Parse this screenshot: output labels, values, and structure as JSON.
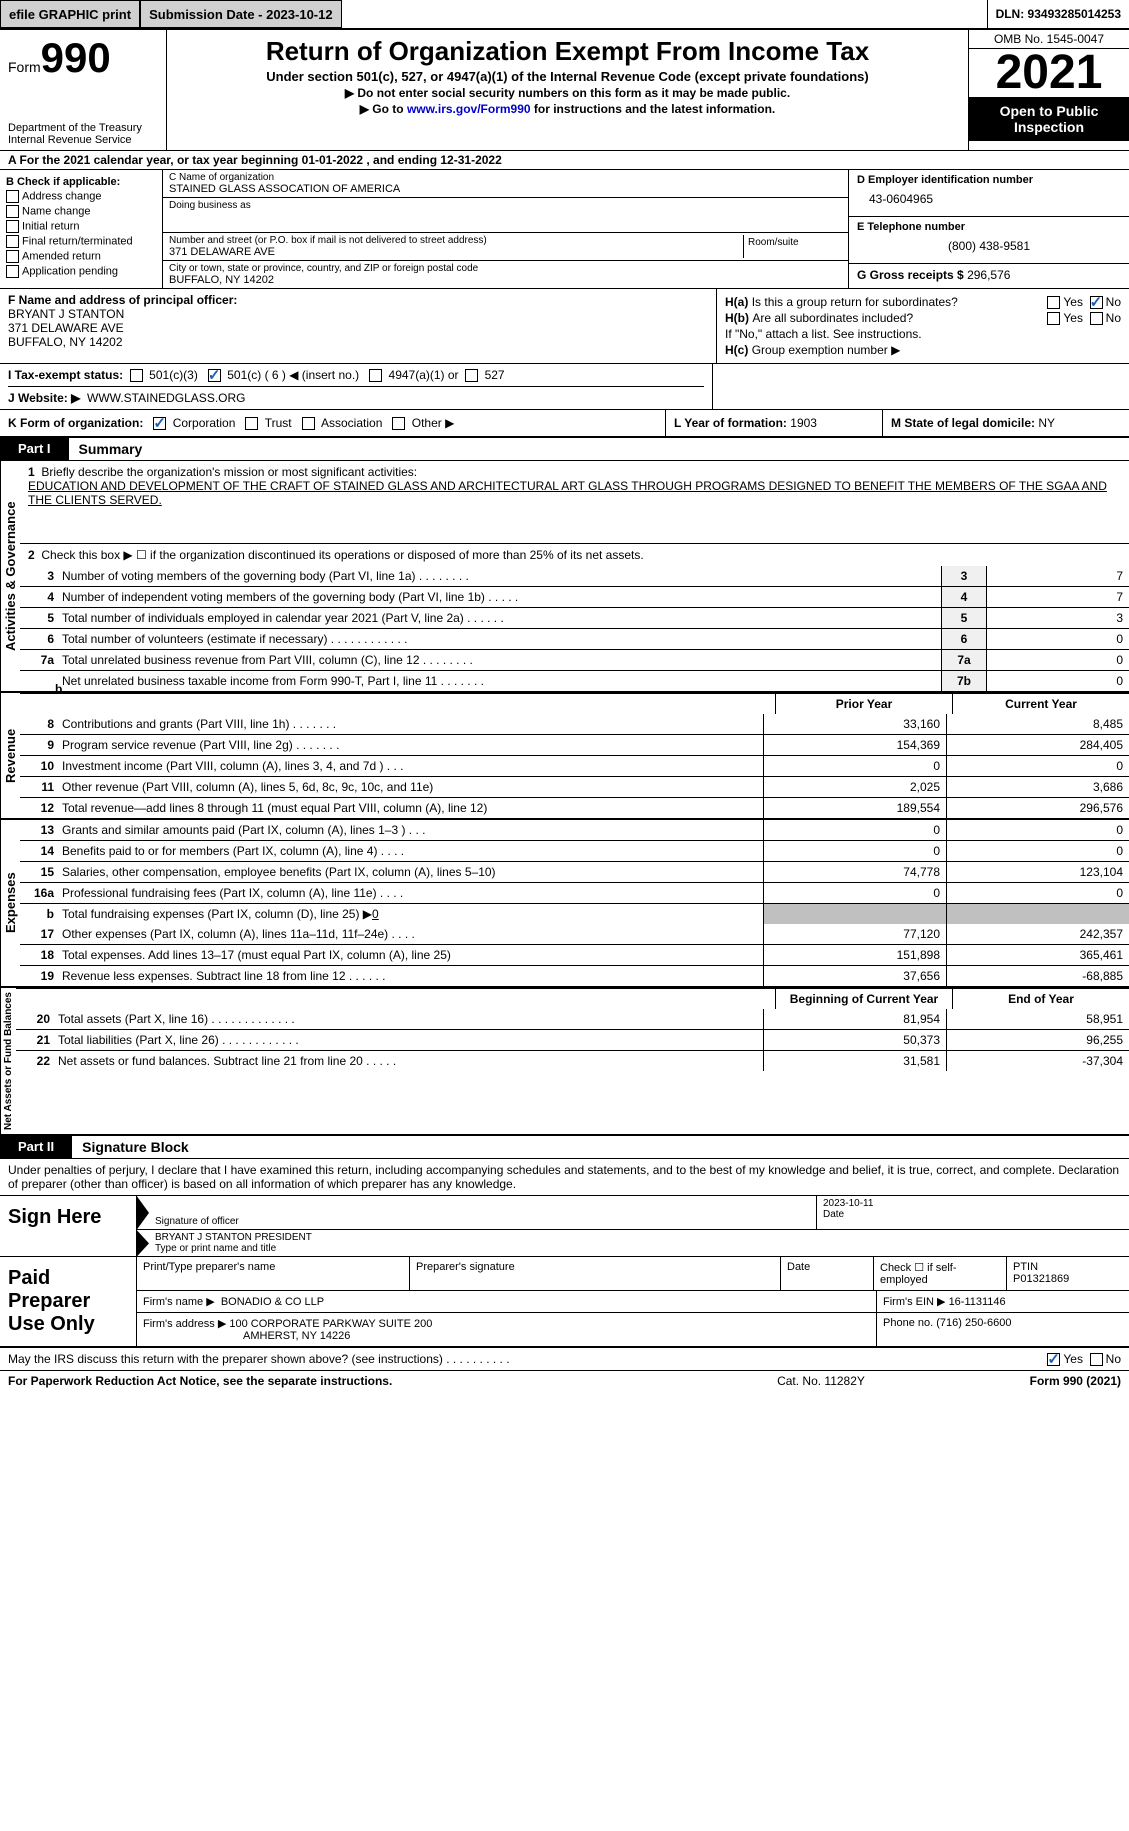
{
  "colors": {
    "black": "#000000",
    "white": "#ffffff",
    "grey_btn": "#d0d0d0",
    "grey_fill": "#c0c0c0",
    "link": "#0000cc",
    "check": "#1a5fb4"
  },
  "topbar": {
    "efile": "efile GRAPHIC print",
    "submission": "Submission Date - 2023-10-12",
    "dln": "DLN: 93493285014253"
  },
  "header": {
    "form_word": "Form",
    "form_num": "990",
    "dept": "Department of the Treasury",
    "irs": "Internal Revenue Service",
    "title": "Return of Organization Exempt From Income Tax",
    "sub": "Under section 501(c), 527, or 4947(a)(1) of the Internal Revenue Code (except private foundations)",
    "arrow1": "▶ Do not enter social security numbers on this form as it may be made public.",
    "arrow2_pre": "▶ Go to ",
    "arrow2_link": "www.irs.gov/Form990",
    "arrow2_post": " for instructions and the latest information.",
    "omb": "OMB No. 1545-0047",
    "year": "2021",
    "open": "Open to Public Inspection"
  },
  "row_a": "A For the 2021 calendar year, or tax year beginning 01-01-2022   , and ending 12-31-2022",
  "section_b": {
    "hdr": "B Check if applicable:",
    "items": [
      "Address change",
      "Name change",
      "Initial return",
      "Final return/terminated",
      "Amended return",
      "Application pending"
    ]
  },
  "section_c": {
    "name_lbl": "C Name of organization",
    "name": "STAINED GLASS ASSOCATION OF AMERICA",
    "dba_lbl": "Doing business as",
    "dba": "",
    "street_lbl": "Number and street (or P.O. box if mail is not delivered to street address)",
    "street": "371 DELAWARE AVE",
    "room_lbl": "Room/suite",
    "city_lbl": "City or town, state or province, country, and ZIP or foreign postal code",
    "city": "BUFFALO, NY  14202"
  },
  "section_d": {
    "ein_lbl": "D Employer identification number",
    "ein": "43-0604965",
    "tel_lbl": "E Telephone number",
    "tel": "(800) 438-9581",
    "gross_lbl": "G Gross receipts $",
    "gross": "296,576"
  },
  "section_f": {
    "lbl": "F Name and address of principal officer:",
    "name": "BRYANT J STANTON",
    "street": "371 DELAWARE AVE",
    "city": "BUFFALO, NY  14202"
  },
  "section_h": {
    "a_lbl": "H(a)",
    "a_q": "Is this a group return for subordinates?",
    "b_lbl": "H(b)",
    "b_q": "Are all subordinates included?",
    "note": "If \"No,\" attach a list. See instructions.",
    "c_lbl": "H(c)",
    "c_q": "Group exemption number ▶",
    "yes": "Yes",
    "no": "No"
  },
  "row_i": {
    "lbl": "I   Tax-exempt status:",
    "o1": "501(c)(3)",
    "o2": "501(c) ( 6 ) ◀ (insert no.)",
    "o3": "4947(a)(1) or",
    "o4": "527"
  },
  "row_j": {
    "lbl": "J   Website: ▶",
    "val": "WWW.STAINEDGLASS.ORG"
  },
  "row_k": {
    "lbl": "K Form of organization:",
    "o1": "Corporation",
    "o2": "Trust",
    "o3": "Association",
    "o4": "Other ▶",
    "l_lbl": "L Year of formation:",
    "l_val": "1903",
    "m_lbl": "M State of legal domicile:",
    "m_val": "NY"
  },
  "part1": {
    "tag": "Part I",
    "title": "Summary"
  },
  "activities": {
    "label": "Activities & Governance",
    "line1_num": "1",
    "line1": "Briefly describe the organization's mission or most significant activities:",
    "mission": "EDUCATION AND DEVELOPMENT OF THE CRAFT OF STAINED GLASS AND ARCHITECTURAL ART GLASS THROUGH PROGRAMS DESIGNED TO BENEFIT THE MEMBERS OF THE SGAA AND THE CLIENTS SERVED.",
    "line2_num": "2",
    "line2": "Check this box ▶ ☐ if the organization discontinued its operations or disposed of more than 25% of its net assets.",
    "rows": [
      {
        "n": "3",
        "d": "Number of voting members of the governing body (Part VI, line 1a)  .    .    .    .    .    .    .    .",
        "b": "3",
        "v": "7"
      },
      {
        "n": "4",
        "d": "Number of independent voting members of the governing body (Part VI, line 1b)  .    .    .    .    .",
        "b": "4",
        "v": "7"
      },
      {
        "n": "5",
        "d": "Total number of individuals employed in calendar year 2021 (Part V, line 2a)  .    .    .    .    .    .",
        "b": "5",
        "v": "3"
      },
      {
        "n": "6",
        "d": "Total number of volunteers (estimate if necessary)  .    .    .    .    .    .    .    .    .    .    .    .",
        "b": "6",
        "v": "0"
      },
      {
        "n": "7a",
        "d": "Total unrelated business revenue from Part VIII, column (C), line 12  .    .    .    .    .    .    .    .",
        "b": "7a",
        "v": "0"
      },
      {
        "n": "",
        "d": "Net unrelated business taxable income from Form 990-T, Part I, line 11  .    .    .    .    .    .    .",
        "b": "7b",
        "v": "0"
      }
    ]
  },
  "revenue": {
    "label": "Revenue",
    "hdr_prior": "Prior Year",
    "hdr_curr": "Current Year",
    "rows": [
      {
        "n": "8",
        "d": "Contributions and grants (Part VIII, line 1h)  .    .    .    .    .    .    .",
        "p": "33,160",
        "c": "8,485"
      },
      {
        "n": "9",
        "d": "Program service revenue (Part VIII, line 2g)  .    .    .    .    .    .    .",
        "p": "154,369",
        "c": "284,405"
      },
      {
        "n": "10",
        "d": "Investment income (Part VIII, column (A), lines 3, 4, and 7d )  .    .    .",
        "p": "0",
        "c": "0"
      },
      {
        "n": "11",
        "d": "Other revenue (Part VIII, column (A), lines 5, 6d, 8c, 9c, 10c, and 11e)",
        "p": "2,025",
        "c": "3,686"
      },
      {
        "n": "12",
        "d": "Total revenue—add lines 8 through 11 (must equal Part VIII, column (A), line 12)",
        "p": "189,554",
        "c": "296,576"
      }
    ]
  },
  "expenses": {
    "label": "Expenses",
    "rows": [
      {
        "n": "13",
        "d": "Grants and similar amounts paid (Part IX, column (A), lines 1–3 )  .    .    .",
        "p": "0",
        "c": "0"
      },
      {
        "n": "14",
        "d": "Benefits paid to or for members (Part IX, column (A), line 4)  .    .    .    .",
        "p": "0",
        "c": "0"
      },
      {
        "n": "15",
        "d": "Salaries, other compensation, employee benefits (Part IX, column (A), lines 5–10)",
        "p": "74,778",
        "c": "123,104"
      },
      {
        "n": "16a",
        "d": "Professional fundraising fees (Part IX, column (A), line 11e)  .    .    .    .",
        "p": "0",
        "c": "0"
      }
    ],
    "line_b_n": "b",
    "line_b": "Total fundraising expenses (Part IX, column (D), line 25) ▶",
    "line_b_val": "0",
    "rows2": [
      {
        "n": "17",
        "d": "Other expenses (Part IX, column (A), lines 11a–11d, 11f–24e)  .    .    .    .",
        "p": "77,120",
        "c": "242,357"
      },
      {
        "n": "18",
        "d": "Total expenses. Add lines 13–17 (must equal Part IX, column (A), line 25)",
        "p": "151,898",
        "c": "365,461"
      },
      {
        "n": "19",
        "d": "Revenue less expenses. Subtract line 18 from line 12  .    .    .    .    .    .",
        "p": "37,656",
        "c": "-68,885"
      }
    ]
  },
  "netassets": {
    "label": "Net Assets or Fund Balances",
    "hdr_beg": "Beginning of Current Year",
    "hdr_end": "End of Year",
    "rows": [
      {
        "n": "20",
        "d": "Total assets (Part X, line 16)  .    .    .    .    .    .    .    .    .    .    .    .    .",
        "p": "81,954",
        "c": "58,951"
      },
      {
        "n": "21",
        "d": "Total liabilities (Part X, line 26)  .    .    .    .    .    .    .    .    .    .    .    .",
        "p": "50,373",
        "c": "96,255"
      },
      {
        "n": "22",
        "d": "Net assets or fund balances. Subtract line 21 from line 20  .    .    .    .    .",
        "p": "31,581",
        "c": "-37,304"
      }
    ]
  },
  "part2": {
    "tag": "Part II",
    "title": "Signature Block"
  },
  "sig": {
    "decl": "Under penalties of perjury, I declare that I have examined this return, including accompanying schedules and statements, and to the best of my knowledge and belief, it is true, correct, and complete. Declaration of preparer (other than officer) is based on all information of which preparer has any knowledge.",
    "sign_here": "Sign Here",
    "sig_of_officer": "Signature of officer",
    "date": "2023-10-11",
    "date_lbl": "Date",
    "name_title": "BRYANT J STANTON  PRESIDENT",
    "type_lbl": "Type or print name and title"
  },
  "prep": {
    "lbl": "Paid Preparer Use Only",
    "print_lbl": "Print/Type preparer's name",
    "print_val": "",
    "sig_lbl": "Preparer's signature",
    "date_lbl": "Date",
    "check_lbl": "Check ☐ if self-employed",
    "ptin_lbl": "PTIN",
    "ptin": "P01321869",
    "firm_name_lbl": "Firm's name    ▶",
    "firm_name": "BONADIO & CO LLP",
    "firm_ein_lbl": "Firm's EIN ▶",
    "firm_ein": "16-1131146",
    "firm_addr_lbl": "Firm's address ▶",
    "firm_addr1": "100 CORPORATE PARKWAY SUITE 200",
    "firm_addr2": "AMHERST, NY  14226",
    "phone_lbl": "Phone no.",
    "phone": "(716) 250-6600"
  },
  "footer": {
    "q": "May the IRS discuss this return with the preparer shown above? (see instructions)  .    .    .    .    .    .    .    .    .    .",
    "yes": "Yes",
    "no": "No",
    "paperwork": "For Paperwork Reduction Act Notice, see the separate instructions.",
    "cat": "Cat. No. 11282Y",
    "form": "Form 990 (2021)"
  }
}
